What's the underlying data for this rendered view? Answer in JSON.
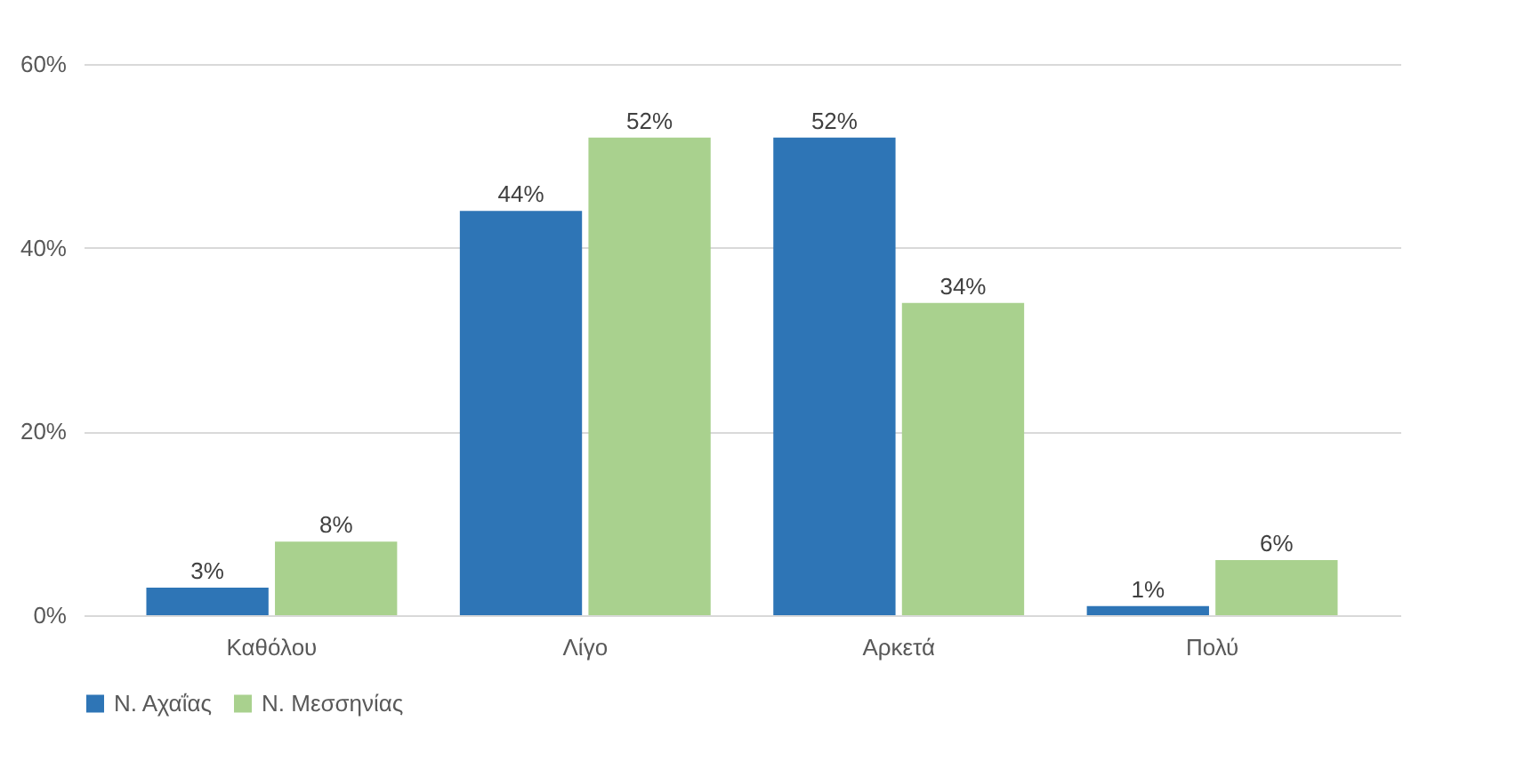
{
  "chart_data": {
    "type": "bar",
    "categories": [
      "Καθόλου",
      "Λίγο",
      "Αρκετά",
      "Πολύ"
    ],
    "series": [
      {
        "name": "Ν. Αχαΐας",
        "color": "#2e75b6",
        "values": [
          3,
          44,
          52,
          1
        ],
        "value_labels": [
          "3%",
          "44%",
          "52%",
          "1%"
        ]
      },
      {
        "name": "Ν. Μεσσηνίας",
        "color": "#a9d18e",
        "values": [
          8,
          52,
          34,
          6
        ],
        "value_labels": [
          "8%",
          "52%",
          "34%",
          "6%"
        ]
      }
    ],
    "ylim": [
      0,
      60
    ],
    "yticks": [
      {
        "value": 0,
        "label": "0%"
      },
      {
        "value": 20,
        "label": "20%"
      },
      {
        "value": 40,
        "label": "40%"
      },
      {
        "value": 60,
        "label": "60%"
      }
    ],
    "grid": "y",
    "legend": "bottom"
  }
}
